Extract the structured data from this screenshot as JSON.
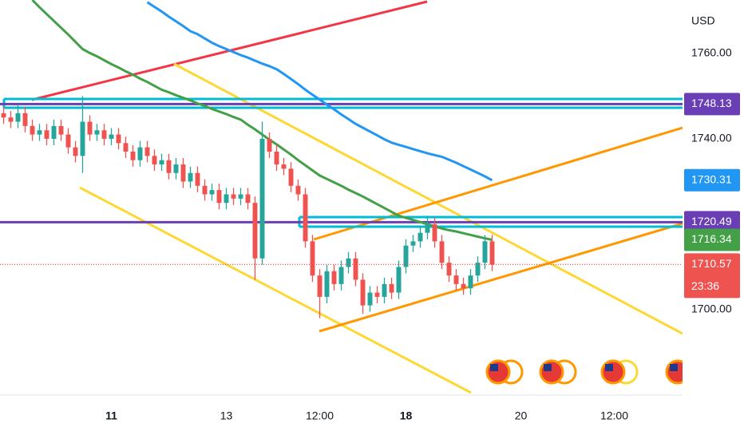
{
  "chart_data": {
    "type": "candlestick",
    "y_label": "USD",
    "ylim": [
      1680,
      1772.5
    ],
    "yticks": [
      {
        "value": 1760,
        "label": "1760.00"
      },
      {
        "value": 1740,
        "label": "1740.00"
      },
      {
        "value": 1700,
        "label": "1700.00"
      }
    ],
    "grid": false,
    "up_color": "#26a69a",
    "down_color": "#ef5350",
    "categories": [
      null,
      null,
      null,
      null,
      null,
      null,
      null,
      null,
      null,
      null,
      null,
      null,
      null,
      null,
      null,
      "11",
      null,
      null,
      null,
      null,
      null,
      null,
      null,
      null,
      null,
      null,
      null,
      null,
      null,
      null,
      null,
      "13",
      null,
      null,
      null,
      null,
      null,
      null,
      null,
      null,
      null,
      null,
      null,
      null,
      "12:00",
      null,
      null,
      null,
      null,
      null,
      null,
      null,
      null,
      null,
      null,
      null,
      "18",
      null,
      null,
      null,
      null,
      null,
      null,
      null,
      null,
      null,
      null,
      null,
      null,
      null,
      null,
      null,
      "20",
      null,
      null,
      null,
      null,
      null,
      null,
      null,
      null,
      null,
      null,
      null,
      null,
      "12:00",
      null,
      null,
      null,
      null,
      null,
      null,
      null,
      null,
      null
    ],
    "open": [
      1746,
      1745,
      1744,
      1746,
      1743,
      1741,
      1742,
      1740,
      1743,
      1741,
      1738,
      1736,
      1744,
      1741,
      1742,
      1740,
      1741,
      1739,
      1737,
      1735,
      1738,
      1736,
      1734,
      1735,
      1732,
      1734,
      1730,
      1732,
      1729,
      1727,
      1728,
      1725,
      1727,
      1726,
      1727,
      1725,
      1712,
      1740,
      1737,
      1734,
      1733,
      1729,
      1727,
      1716,
      1708,
      1703,
      1709,
      1706,
      1710,
      1712,
      1707,
      1701,
      1704,
      1703,
      1706,
      1704,
      1710,
      1715,
      1716,
      1718,
      1720,
      1716,
      1711,
      1708,
      1706,
      1705,
      1708,
      1711,
      1716,
      null,
      null,
      null,
      null,
      null,
      null,
      null,
      null,
      null,
      null,
      null,
      null,
      null,
      null,
      null,
      null,
      null,
      null,
      null,
      null,
      null,
      null,
      null,
      null,
      null,
      null
    ],
    "high": [
      1747.5,
      1746.5,
      1748,
      1747.5,
      1744.5,
      1743.5,
      1743.5,
      1744.5,
      1744.5,
      1742.5,
      1739.5,
      1750,
      1745.5,
      1743.5,
      1743.5,
      1742.5,
      1742.5,
      1740.5,
      1738.5,
      1739.5,
      1739.5,
      1737.5,
      1736.5,
      1736.5,
      1735.5,
      1735.5,
      1733.5,
      1733.5,
      1730.5,
      1729.5,
      1729.5,
      1728.5,
      1728.5,
      1728.5,
      1728.5,
      1726.5,
      1744,
      1741.5,
      1738.5,
      1735.5,
      1734.5,
      1730.5,
      1728.5,
      1717.5,
      1709.5,
      1710.5,
      1710.5,
      1711.5,
      1713.5,
      1713.5,
      1708.5,
      1705.5,
      1705.5,
      1707.5,
      1707.5,
      1711.5,
      1716.5,
      1717.5,
      1719.5,
      1722,
      1721.5,
      1717.5,
      1712.5,
      1709.5,
      1707.5,
      1709.5,
      1712.5,
      1717.5,
      1717.5,
      null,
      null,
      null,
      null,
      null,
      null,
      null,
      null,
      null,
      null,
      null,
      null,
      null,
      null,
      null,
      null,
      null,
      null,
      null,
      null,
      null,
      null,
      null,
      null,
      null,
      null
    ],
    "low": [
      1743.5,
      1742.5,
      1742.5,
      1741.5,
      1739.5,
      1739.5,
      1738.5,
      1738.5,
      1739.5,
      1736.5,
      1734.5,
      1732,
      1739.5,
      1739.5,
      1738.5,
      1738.5,
      1737.5,
      1735.5,
      1733.5,
      1733.5,
      1734.5,
      1732.5,
      1732.5,
      1730.5,
      1730.5,
      1728.5,
      1728.5,
      1727.5,
      1725.5,
      1725.5,
      1723.5,
      1723.5,
      1724.5,
      1724.5,
      1723.5,
      1707,
      1710.5,
      1735.5,
      1732.5,
      1731.5,
      1727.5,
      1725.5,
      1714.5,
      1706.5,
      1698,
      1701.5,
      1704.5,
      1704.5,
      1708.5,
      1705.5,
      1699,
      1699.5,
      1701.5,
      1701.5,
      1702.5,
      1702.5,
      1708.5,
      1713.5,
      1714.5,
      1716.5,
      1714.5,
      1709.5,
      1706.5,
      1704.5,
      1703.5,
      1703.5,
      1706.5,
      1709.5,
      1709,
      null,
      null,
      null,
      null,
      null,
      null,
      null,
      null,
      null,
      null,
      null,
      null,
      null,
      null,
      null,
      null,
      null,
      null,
      null,
      null,
      null,
      null,
      null,
      null,
      null,
      null
    ],
    "close": [
      1745,
      1744,
      1746,
      1743,
      1741,
      1742,
      1740,
      1743,
      1741,
      1738,
      1736,
      1744,
      1741,
      1742,
      1740,
      1741,
      1739,
      1737,
      1735,
      1738,
      1736,
      1734,
      1735,
      1732,
      1734,
      1730,
      1732,
      1729,
      1727,
      1728,
      1725,
      1727,
      1726,
      1727,
      1725,
      1712,
      1740,
      1737,
      1734,
      1733,
      1729,
      1727,
      1716,
      1708,
      1703,
      1709,
      1706,
      1710,
      1712,
      1707,
      1701,
      1704,
      1703,
      1706,
      1704,
      1710,
      1715,
      1716,
      1718,
      1720,
      1716,
      1711,
      1708,
      1706,
      1705,
      1708,
      1711,
      1716,
      1710.57,
      null,
      null,
      null,
      null,
      null,
      null,
      null,
      null,
      null,
      null,
      null,
      null,
      null,
      null,
      null,
      null,
      null,
      null,
      null,
      null,
      null,
      null,
      null,
      null,
      null,
      null
    ],
    "close_label": "1710.57",
    "countdown": "23:36",
    "series": [
      {
        "color": "#43a047",
        "last_value_label": "1716.34",
        "values": [
          null,
          null,
          null,
          null,
          1772.5,
          1770.8,
          1769.2,
          1767.6,
          1766,
          1764.4,
          1762.7,
          1761,
          1760.1,
          1759.3,
          1758.4,
          1757.5,
          1756.7,
          1755.8,
          1755,
          1754.1,
          1753.3,
          1752.4,
          1751.5,
          1750.9,
          1750.2,
          1749.6,
          1749,
          1748.3,
          1747.7,
          1747,
          1746.4,
          1745.8,
          1745.1,
          1744.5,
          1743.3,
          1742.2,
          1741,
          1739.8,
          1738.7,
          1737.5,
          1736.3,
          1735,
          1733.8,
          1732.6,
          1731.4,
          1730.6,
          1729.8,
          1729,
          1728.1,
          1727.3,
          1726.5,
          1725.6,
          1724.7,
          1723.8,
          1722.9,
          1722,
          1721.5,
          1721,
          1720.5,
          1720,
          1719.5,
          1719,
          1718.6,
          1718.3,
          1717.9,
          1717.5,
          1717.1,
          1716.7,
          1716.34,
          null,
          null,
          null,
          null,
          null,
          null,
          null,
          null,
          null,
          null,
          null,
          null,
          null,
          null,
          null,
          null,
          null,
          null,
          null,
          null,
          null,
          null,
          null,
          null,
          null,
          null
        ]
      },
      {
        "color": "#2196f3",
        "last_value_label": "1730.31",
        "values": [
          null,
          null,
          null,
          null,
          null,
          null,
          null,
          null,
          null,
          null,
          null,
          null,
          null,
          null,
          null,
          null,
          null,
          null,
          null,
          null,
          1772,
          1770.9,
          1769.8,
          1768.6,
          1767.5,
          1766.4,
          1765.2,
          1764.5,
          1763.5,
          1762.5,
          1761.7,
          1761,
          1760.3,
          1759.6,
          1759,
          1758.3,
          1757.6,
          1757,
          1756.3,
          1755.2,
          1754,
          1752.8,
          1751.5,
          1750.3,
          1749.2,
          1748,
          1746.9,
          1745.7,
          1744.6,
          1743.5,
          1742.6,
          1741.7,
          1740.8,
          1739.9,
          1739.1,
          1738.6,
          1738.1,
          1737.6,
          1737.1,
          1736.6,
          1736.2,
          1735.8,
          1735.1,
          1734.4,
          1733.6,
          1732.8,
          1732,
          1731.2,
          1730.31,
          null,
          null,
          null,
          null,
          null,
          null,
          null,
          null,
          null,
          null,
          null,
          null,
          null,
          null,
          null,
          null,
          null,
          null,
          null,
          null,
          null,
          null,
          null,
          null,
          null,
          null
        ]
      }
    ],
    "levels": [
      {
        "value": 1748.13,
        "label": "1748.13",
        "color": "#6a3fb5"
      },
      {
        "value": 1720.49,
        "label": "1720.49",
        "color": "#6a3fb5"
      }
    ]
  }
}
